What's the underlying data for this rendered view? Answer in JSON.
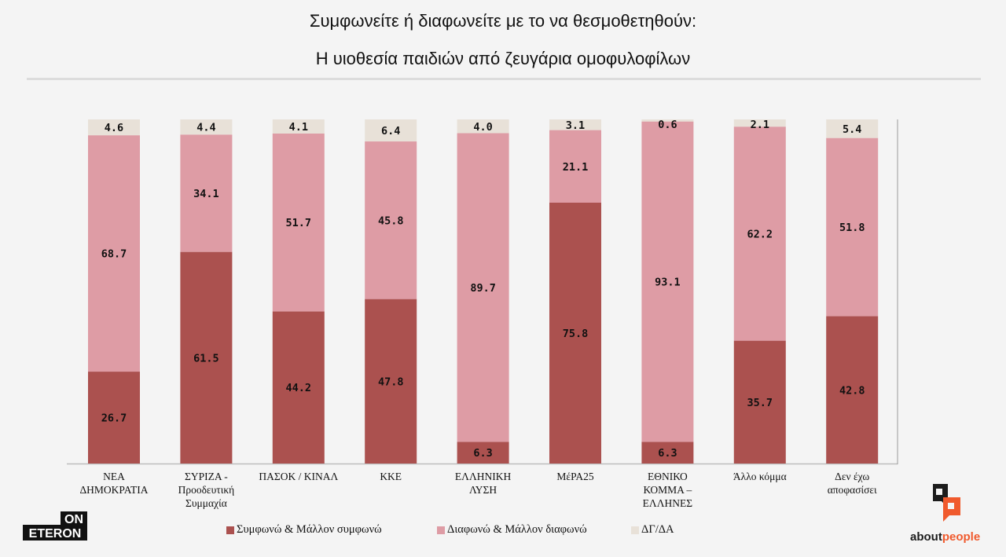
{
  "chart_data": {
    "type": "bar",
    "stacked": true,
    "title": "Συμφωνείτε ή διαφωνείτε με το να θεσμοθετηθούν:",
    "subtitle": "Η υιοθεσία παιδιών από ζευγάρια ομοφυλοφίλων",
    "xlabel": "",
    "ylabel": "",
    "ylim": [
      0,
      100
    ],
    "grid": false,
    "legend_position": "bottom",
    "categories": [
      [
        "ΝΕΑ",
        "ΔΗΜΟΚΡΑΤΙΑ"
      ],
      [
        "ΣΥΡΙΖΑ -",
        "Προοδευτική",
        "Συμμαχία"
      ],
      [
        "ΠΑΣΟΚ / ΚΙΝΑΛ"
      ],
      [
        "ΚΚΕ"
      ],
      [
        "ΕΛΛΗΝΙΚΗ",
        "ΛΥΣΗ"
      ],
      [
        "ΜέΡΑ25"
      ],
      [
        "ΕΘΝΙΚΟ",
        "ΚΟΜΜΑ –",
        "ΕΛΛΗΝΕΣ"
      ],
      [
        "Άλλο κόμμα"
      ],
      [
        "Δεν έχω",
        "αποφασίσει"
      ]
    ],
    "series": [
      {
        "name": "Συμφωνώ & Μάλλον συμφωνώ",
        "color": "#ab514f",
        "values": [
          26.7,
          61.5,
          44.2,
          47.8,
          6.3,
          75.8,
          6.3,
          35.7,
          42.8
        ],
        "labels": [
          "26.7",
          "61.5",
          "44.2",
          "47.8",
          "6.3",
          "75.8",
          "6.3",
          "35.7",
          "42.8"
        ]
      },
      {
        "name": "Διαφωνώ & Μάλλον διαφωνώ",
        "color": "#de9ca5",
        "values": [
          68.7,
          34.1,
          51.7,
          45.8,
          89.7,
          21.1,
          93.1,
          62.2,
          51.8
        ],
        "labels": [
          "68.7",
          "34.1",
          "51.7",
          "45.8",
          "89.7",
          "21.1",
          "93.1",
          "62.2",
          "51.8"
        ]
      },
      {
        "name": "ΔΓ/ΔΑ",
        "color": "#e8e1d8",
        "values": [
          4.6,
          4.4,
          4.1,
          6.4,
          4.0,
          3.1,
          0.6,
          2.1,
          5.4
        ],
        "labels": [
          "4.6",
          "4.4",
          "4.1",
          "6.4",
          "4.0",
          "3.1",
          "0.6",
          "2.1",
          "5.4"
        ]
      }
    ]
  },
  "logos": {
    "left": [
      "ON",
      "ETERON"
    ],
    "right": [
      "about",
      "people"
    ]
  }
}
